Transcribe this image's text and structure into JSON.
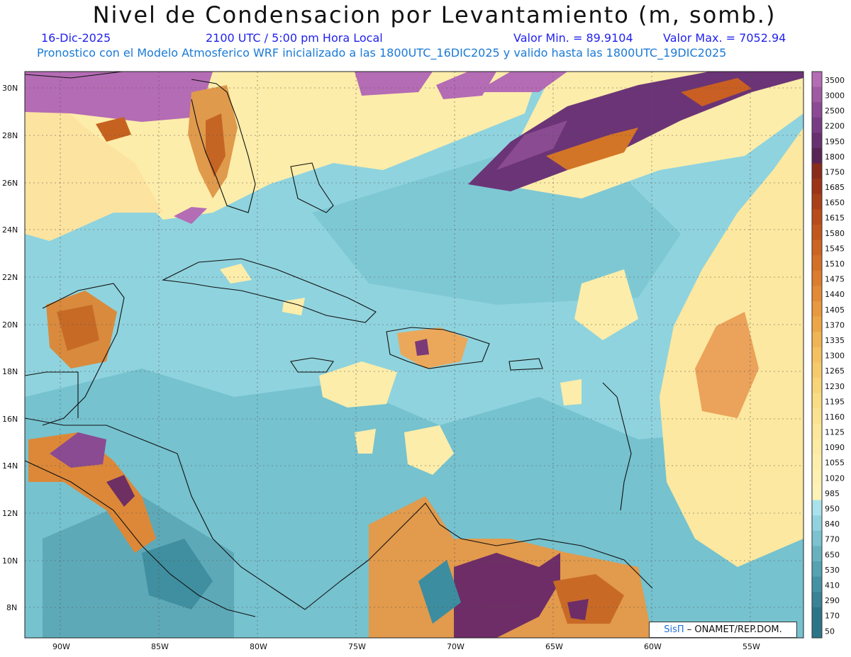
{
  "header": {
    "title": "Nivel de Condensacion por Levantamiento (m, somb.)",
    "date": "16-Dic-2025",
    "time": "2100 UTC / 5:00 pm Hora Local",
    "min_label": "Valor Min. = 89.9104",
    "max_label": "Valor Max. = 7052.94",
    "model_line": "Pronostico con el Modelo Atmosferico WRF inicializado a las 1800UTC_16DIC2025 y valido hasta las  1800UTC_19DIC2025"
  },
  "axes": {
    "lat_labels": [
      "30N",
      "28N",
      "26N",
      "24N",
      "22N",
      "20N",
      "18N",
      "16N",
      "14N",
      "12N",
      "10N",
      "8N"
    ],
    "lon_labels": [
      "90W",
      "85W",
      "80W",
      "75W",
      "70W",
      "65W",
      "60W",
      "55W"
    ]
  },
  "legend": {
    "levels": [
      "3500",
      "3000",
      "2500",
      "2200",
      "1950",
      "1800",
      "1750",
      "1685",
      "1650",
      "1615",
      "1580",
      "1545",
      "1510",
      "1475",
      "1440",
      "1405",
      "1370",
      "1335",
      "1300",
      "1265",
      "1230",
      "1195",
      "1160",
      "1125",
      "1090",
      "1055",
      "1020",
      "985",
      "950",
      "840",
      "770",
      "650",
      "530",
      "410",
      "290",
      "170",
      "50"
    ],
    "colors": [
      "#b46cb4",
      "#a05aa4",
      "#8c4a94",
      "#783c84",
      "#683070",
      "#5a2456",
      "#8a2c1c",
      "#9c3418",
      "#aa4018",
      "#b84c1a",
      "#c2571e",
      "#cc6422",
      "#d47028",
      "#dc7c2e",
      "#e28a36",
      "#e8983e",
      "#ec a648",
      "#f0b454",
      "#f4c060",
      "#f6ca6c",
      "#f8d478",
      "#fadc84",
      "#fbe290",
      "#fce79a",
      "#fdeba4",
      "#fdeeac",
      "#fdf0b2",
      "#fdf2b8",
      "#a9e2ec",
      "#92d2de",
      "#7cc2cf",
      "#68b2c0",
      "#56a2b2",
      "#4692a4",
      "#3a8296",
      "#2e7488"
    ]
  },
  "credit": {
    "logo": "SisΠ",
    "text": "– ONAMET/REP.DOM."
  }
}
